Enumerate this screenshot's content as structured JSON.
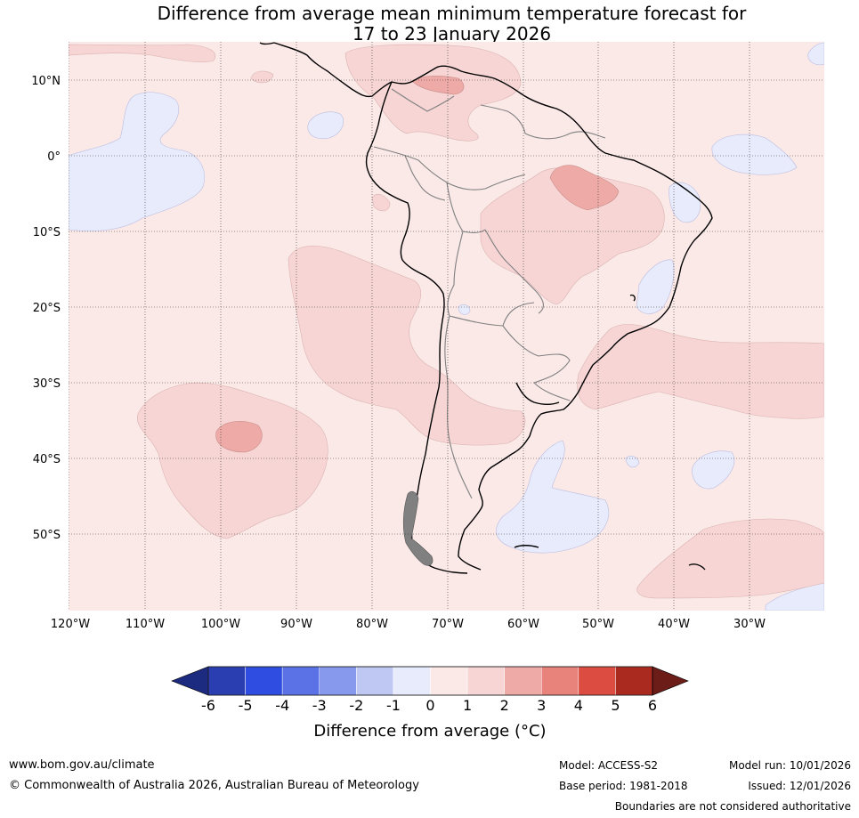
{
  "title_line1": "Difference from average mean minimum temperature forecast for",
  "title_line2": "17 to 23 January 2026",
  "lat_labels": [
    "10°N",
    "0°",
    "10°S",
    "20°S",
    "30°S",
    "40°S",
    "50°S"
  ],
  "lon_labels": [
    "120°W",
    "110°W",
    "100°W",
    "90°W",
    "80°W",
    "70°W",
    "60°W",
    "50°W",
    "40°W",
    "30°W"
  ],
  "colorbar": {
    "ticks": [
      "-6",
      "-5",
      "-4",
      "-3",
      "-2",
      "-1",
      "0",
      "1",
      "2",
      "3",
      "4",
      "5",
      "6"
    ],
    "colors": [
      "#1c2b7f",
      "#2a3eb1",
      "#2f4de0",
      "#5b72e6",
      "#8799ec",
      "#bfc8f3",
      "#e8ebfb",
      "#fbe9e8",
      "#f6d5d4",
      "#edaaa6",
      "#e8837c",
      "#dc4c40",
      "#ab2a20",
      "#6d1d17"
    ],
    "label": "Difference from average (°C)"
  },
  "footer": {
    "url": "www.bom.gov.au/climate",
    "copyright": "© Commonwealth of Australia 2026, Australian Bureau of Meteorology",
    "model": "Model: ACCESS-S2",
    "base_period": "Base period: 1981-2018",
    "model_run": "Model run: 10/01/2026",
    "issued": "Issued: 12/01/2026",
    "disclaimer": "Boundaries are not considered authoritative"
  }
}
